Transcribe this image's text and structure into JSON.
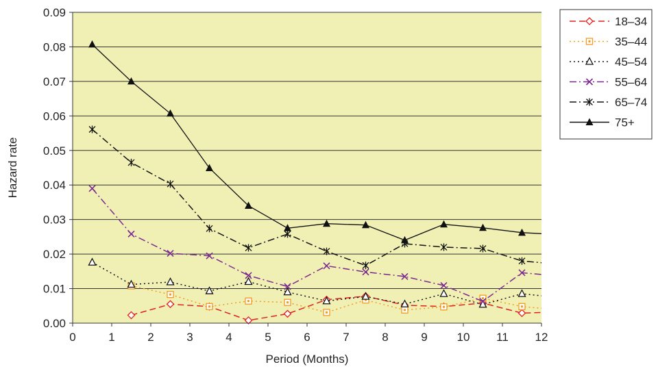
{
  "chart_data": {
    "type": "line",
    "xlabel": "Period (Months)",
    "ylabel": "Hazard rate",
    "xlim": [
      0,
      12
    ],
    "ylim": [
      0,
      0.09
    ],
    "x_ticks": [
      "0",
      "1",
      "2",
      "3",
      "4",
      "5",
      "6",
      "7",
      "8",
      "9",
      "10",
      "11",
      "12"
    ],
    "y_ticks": [
      "0.00",
      "0.01",
      "0.02",
      "0.03",
      "0.04",
      "0.05",
      "0.06",
      "0.07",
      "0.08",
      "0.09"
    ],
    "grid": "horizontal",
    "legend_position": "right",
    "plot_background": "#F0F0B4",
    "series": [
      {
        "name": "18–34",
        "color": "#E0201E",
        "dash": "dash",
        "marker": "diamond",
        "x": [
          1.5,
          2.5,
          3.5,
          4.5,
          5.5,
          6.5,
          7.5,
          8.5,
          9.5,
          10.5,
          11.5,
          12
        ],
        "y": [
          0.0023,
          0.0055,
          0.0048,
          0.0008,
          0.0027,
          0.0068,
          0.0078,
          0.0052,
          0.0048,
          0.0058,
          0.0029,
          0.0031
        ]
      },
      {
        "name": "35–44",
        "color": "#F39B1E",
        "dash": "dot",
        "marker": "square",
        "x": [
          1.5,
          2.5,
          3.5,
          4.5,
          5.5,
          6.5,
          7.5,
          8.5,
          9.5,
          10.5,
          11.5,
          12
        ],
        "y": [
          0.0108,
          0.0083,
          0.0048,
          0.0064,
          0.006,
          0.0031,
          0.0067,
          0.0038,
          0.0047,
          0.0072,
          0.0048,
          0.0043
        ]
      },
      {
        "name": "45–54",
        "color": "#111111",
        "dash": "dot",
        "marker": "triangle-open",
        "x": [
          0.5,
          1.5,
          2.5,
          3.5,
          4.5,
          5.5,
          6.5,
          7.5,
          8.5,
          9.5,
          10.5,
          11.5,
          12
        ],
        "y": [
          0.0176,
          0.0112,
          0.0119,
          0.0093,
          0.012,
          0.009,
          0.0064,
          0.0077,
          0.0055,
          0.0085,
          0.0054,
          0.0085,
          0.0079
        ]
      },
      {
        "name": "55–64",
        "color": "#7A2A8E",
        "dash": "dashdot",
        "marker": "x",
        "x": [
          0.5,
          1.5,
          2.5,
          3.5,
          4.5,
          5.5,
          6.5,
          7.5,
          8.5,
          9.5,
          10.5,
          11.5,
          12
        ],
        "y": [
          0.039,
          0.0258,
          0.0202,
          0.0195,
          0.0138,
          0.0106,
          0.0166,
          0.0148,
          0.0135,
          0.0109,
          0.0063,
          0.0146,
          0.0141
        ]
      },
      {
        "name": "65–74",
        "color": "#111111",
        "dash": "dashdot",
        "marker": "star",
        "x": [
          0.5,
          1.5,
          2.5,
          3.5,
          4.5,
          5.5,
          6.5,
          7.5,
          8.5,
          9.5,
          10.5,
          11.5,
          12
        ],
        "y": [
          0.0561,
          0.0465,
          0.0403,
          0.0274,
          0.0218,
          0.0258,
          0.0208,
          0.0167,
          0.023,
          0.022,
          0.0216,
          0.018,
          0.0175
        ]
      },
      {
        "name": "75+",
        "color": "#111111",
        "dash": "solid",
        "marker": "triangle-filled",
        "x": [
          0.5,
          1.5,
          2.5,
          3.5,
          4.5,
          5.5,
          6.5,
          7.5,
          8.5,
          9.5,
          10.5,
          11.5,
          12
        ],
        "y": [
          0.0807,
          0.07,
          0.0607,
          0.0449,
          0.034,
          0.0275,
          0.0288,
          0.0284,
          0.024,
          0.0286,
          0.0276,
          0.0262,
          0.0259
        ]
      }
    ]
  }
}
